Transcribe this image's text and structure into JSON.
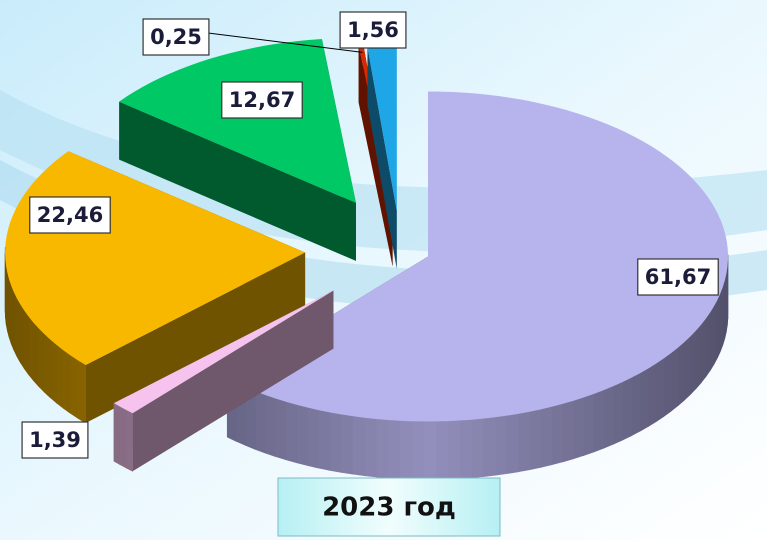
{
  "chart_data": {
    "type": "pie3d",
    "title": "2023 год",
    "values": [
      61.67,
      1.39,
      22.46,
      12.67,
      0.25,
      1.56
    ],
    "value_labels": [
      "61,67",
      "1,39",
      "22,46",
      "12,67",
      "0,25",
      "1,56"
    ],
    "colors": [
      "#b7b3ec",
      "#f6c3ef",
      "#f9b800",
      "#00c864",
      "#d82a00",
      "#1ea6e6"
    ]
  }
}
